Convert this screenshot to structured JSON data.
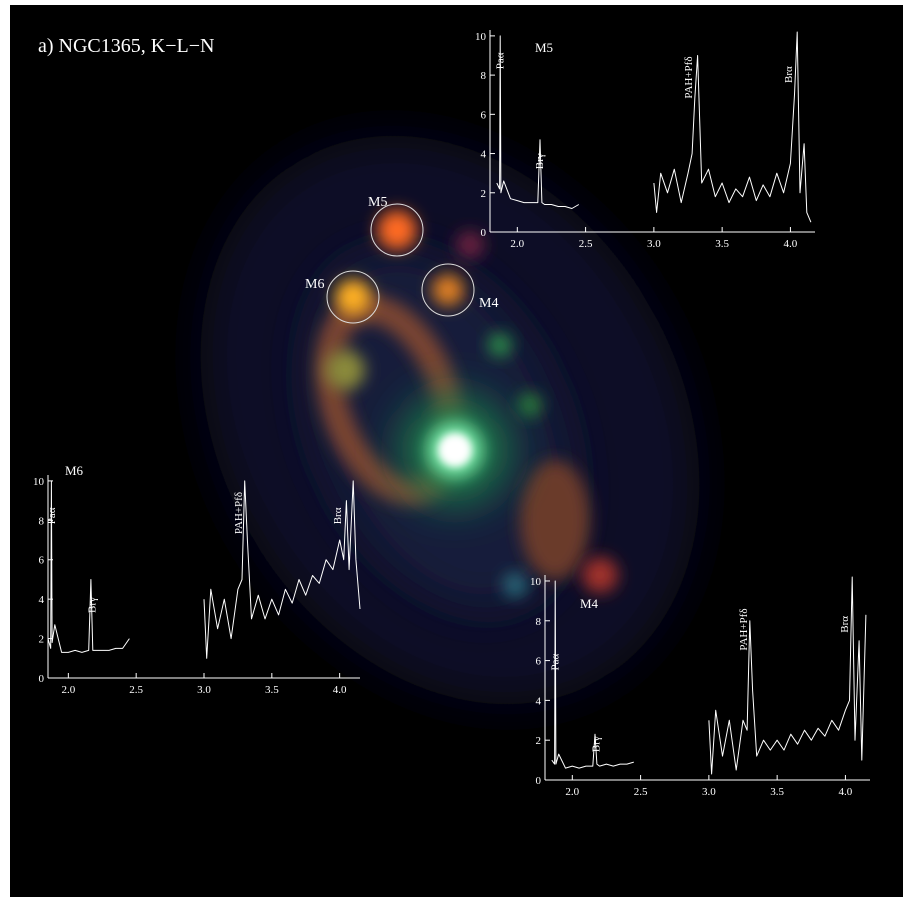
{
  "title": "a) NGC1365, K−L−N",
  "chart_data": [
    {
      "type": "line",
      "title": "M5",
      "color": "#ffffff",
      "x": [
        1.85,
        1.87,
        1.875,
        1.88,
        1.9,
        1.95,
        2.0,
        2.05,
        2.1,
        2.15,
        2.166,
        2.18,
        2.2,
        2.25,
        2.3,
        2.35,
        2.4,
        2.45,
        2.7,
        3.0,
        3.02,
        3.05,
        3.1,
        3.15,
        3.2,
        3.25,
        3.28,
        3.3,
        3.32,
        3.35,
        3.4,
        3.45,
        3.5,
        3.55,
        3.6,
        3.65,
        3.7,
        3.75,
        3.8,
        3.85,
        3.9,
        3.95,
        4.0,
        4.03,
        4.05,
        4.07,
        4.1,
        4.12,
        4.15
      ],
      "values": [
        2.5,
        2.2,
        10.0,
        2.0,
        2.6,
        1.7,
        1.6,
        1.5,
        1.5,
        1.5,
        4.7,
        1.5,
        1.4,
        1.4,
        1.3,
        1.3,
        1.2,
        1.4,
        null,
        2.5,
        1.0,
        3.0,
        2.0,
        3.2,
        1.5,
        3.0,
        4.0,
        6.8,
        9.0,
        2.5,
        3.2,
        1.8,
        2.5,
        1.5,
        2.2,
        1.8,
        2.8,
        1.6,
        2.4,
        1.8,
        3.0,
        2.0,
        3.5,
        7.0,
        10.2,
        2.0,
        4.5,
        1.0,
        0.5
      ],
      "xlim": [
        1.8,
        4.18
      ],
      "ylim": [
        0,
        10.3
      ],
      "xticks": [
        {
          "value": 2.0,
          "label": "2.0"
        },
        2.5,
        {
          "value": 3.0,
          "label": "3.0"
        },
        3.5,
        {
          "value": 4.0,
          "label": "4.0"
        }
      ],
      "yticks": [
        0,
        2,
        4,
        6,
        8,
        10
      ],
      "annotations": [
        {
          "text": "Paα",
          "x": 1.9,
          "y": 8.3
        },
        {
          "text": "Brγ",
          "x": 2.19,
          "y": 3.2
        },
        {
          "text": "PAH+Pfδ",
          "x": 3.28,
          "y": 6.8
        },
        {
          "text": "Brα",
          "x": 4.01,
          "y": 7.6
        }
      ]
    },
    {
      "type": "line",
      "title": "M6",
      "color": "#ffffff",
      "x": [
        1.85,
        1.87,
        1.875,
        1.88,
        1.9,
        1.95,
        2.0,
        2.05,
        2.1,
        2.15,
        2.166,
        2.18,
        2.2,
        2.25,
        2.3,
        2.35,
        2.4,
        2.45,
        2.7,
        3.0,
        3.02,
        3.05,
        3.1,
        3.15,
        3.2,
        3.25,
        3.28,
        3.3,
        3.32,
        3.35,
        3.4,
        3.45,
        3.5,
        3.55,
        3.6,
        3.65,
        3.7,
        3.75,
        3.8,
        3.85,
        3.9,
        3.95,
        4.0,
        4.03,
        4.05,
        4.07,
        4.1,
        4.12,
        4.15
      ],
      "values": [
        2.0,
        1.5,
        10.0,
        1.8,
        2.7,
        1.3,
        1.3,
        1.4,
        1.3,
        1.4,
        5.0,
        1.4,
        1.4,
        1.4,
        1.4,
        1.5,
        1.5,
        2.0,
        null,
        4.0,
        1.0,
        4.5,
        2.5,
        4.0,
        2.0,
        4.5,
        5.0,
        10.0,
        7.0,
        3.0,
        4.2,
        3.0,
        4.0,
        3.2,
        4.5,
        3.8,
        5.0,
        4.2,
        5.2,
        4.8,
        6.0,
        5.5,
        7.0,
        6.0,
        9.0,
        5.5,
        10.0,
        6.0,
        3.5
      ],
      "xlim": [
        1.85,
        4.15
      ],
      "ylim": [
        0,
        10.3
      ],
      "xticks": [
        {
          "value": 2.0,
          "label": "2.0"
        },
        2.5,
        {
          "value": 3.0,
          "label": "3.0"
        },
        3.5,
        {
          "value": 4.0,
          "label": "4.0"
        }
      ],
      "yticks": [
        0,
        2,
        4,
        6,
        8,
        10
      ],
      "annotations": [
        {
          "text": "Paα",
          "x": 1.9,
          "y": 7.8
        },
        {
          "text": "Brγ",
          "x": 2.2,
          "y": 3.3
        },
        {
          "text": "PAH+Pfδ",
          "x": 3.28,
          "y": 7.3
        },
        {
          "text": "Brα",
          "x": 4.01,
          "y": 7.8
        }
      ]
    },
    {
      "type": "line",
      "title": "M4",
      "color": "#ffffff",
      "x": [
        1.85,
        1.87,
        1.875,
        1.88,
        1.9,
        1.95,
        2.0,
        2.05,
        2.1,
        2.15,
        2.166,
        2.18,
        2.2,
        2.25,
        2.3,
        2.35,
        2.4,
        2.45,
        2.7,
        3.0,
        3.02,
        3.05,
        3.1,
        3.15,
        3.2,
        3.25,
        3.28,
        3.3,
        3.32,
        3.35,
        3.4,
        3.45,
        3.5,
        3.55,
        3.6,
        3.65,
        3.7,
        3.75,
        3.8,
        3.85,
        3.9,
        3.95,
        4.0,
        4.03,
        4.05,
        4.07,
        4.1,
        4.12,
        4.15
      ],
      "values": [
        1.0,
        0.8,
        10.0,
        0.8,
        1.3,
        0.6,
        0.7,
        0.6,
        0.7,
        0.7,
        2.3,
        0.8,
        0.7,
        0.8,
        0.7,
        0.8,
        0.8,
        0.9,
        null,
        3.0,
        0.3,
        3.5,
        1.2,
        3.0,
        0.5,
        3.0,
        2.5,
        8.0,
        4.5,
        1.2,
        2.0,
        1.5,
        2.0,
        1.5,
        2.3,
        1.8,
        2.5,
        2.0,
        2.6,
        2.2,
        3.0,
        2.5,
        3.5,
        4.0,
        10.2,
        2.0,
        7.0,
        1.0,
        8.3
      ],
      "xlim": [
        1.8,
        4.18
      ],
      "ylim": [
        0,
        10.3
      ],
      "xticks": [
        {
          "value": 2.0,
          "label": "2.0"
        },
        2.5,
        {
          "value": 3.0,
          "label": "3.0"
        },
        3.5,
        {
          "value": 4.0,
          "label": "4.0"
        }
      ],
      "yticks": [
        0,
        2,
        4,
        6,
        8,
        10
      ],
      "annotations": [
        {
          "text": "Paα",
          "x": 1.9,
          "y": 5.5
        },
        {
          "text": "Brγ",
          "x": 2.2,
          "y": 1.4
        },
        {
          "text": "PAH+Pfδ",
          "x": 3.28,
          "y": 6.5
        },
        {
          "text": "Brα",
          "x": 4.02,
          "y": 7.4
        }
      ]
    }
  ]
}
